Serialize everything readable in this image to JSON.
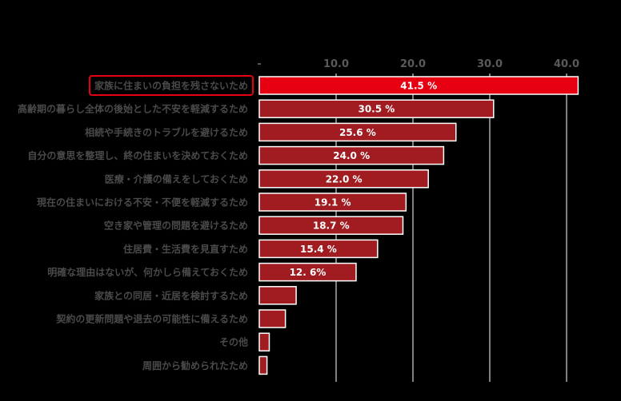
{
  "chart_data": {
    "type": "bar",
    "orientation": "horizontal",
    "title": "",
    "xlabel": "",
    "ylabel": "",
    "xlim": [
      0,
      40
    ],
    "ticks": [
      0,
      10,
      20,
      30,
      40
    ],
    "tick_labels": [
      "-",
      "10.0",
      "20.0",
      "30.0",
      "40.0"
    ],
    "grid": true,
    "categories": [
      "家族に住まいの負担を残さないため",
      "高齢期の暮らし全体の後始とした不安を軽減するため",
      "相続や手続きのトラブルを避けるため",
      "自分の意思を整理し、終の住まいを決めておくため",
      "医療・介護の備えをしておくため",
      "現在の住まいにおける不安・不便を軽減するため",
      "空き家や管理の問題を避けるため",
      "住居費・生活費を見直すため",
      "明確な理由はないが、何かしら備えておくため",
      "家族との同居・近居を検討するため",
      "契約の更新問題や退去の可能性に備えるため",
      "その他",
      "周囲から勧められたため"
    ],
    "values": [
      41.5,
      30.5,
      25.6,
      24.0,
      22.0,
      19.1,
      18.7,
      15.4,
      12.6,
      4.8,
      3.4,
      1.3,
      1.0
    ],
    "value_labels": [
      "41.5 %",
      "30.5 %",
      "25.6 %",
      "24.0 %",
      "22.0 %",
      "19.1 %",
      "18.7 %",
      "15.4 %",
      "12. 6%",
      "",
      "",
      "",
      ""
    ],
    "highlight_index": 0,
    "colors": {
      "background": "#000000",
      "highlight_bar": "#e60012",
      "bar": "#a01c20",
      "bar_outline": "#ffffff",
      "grid": "#ffffff",
      "highlight_box": "#e60012"
    }
  }
}
